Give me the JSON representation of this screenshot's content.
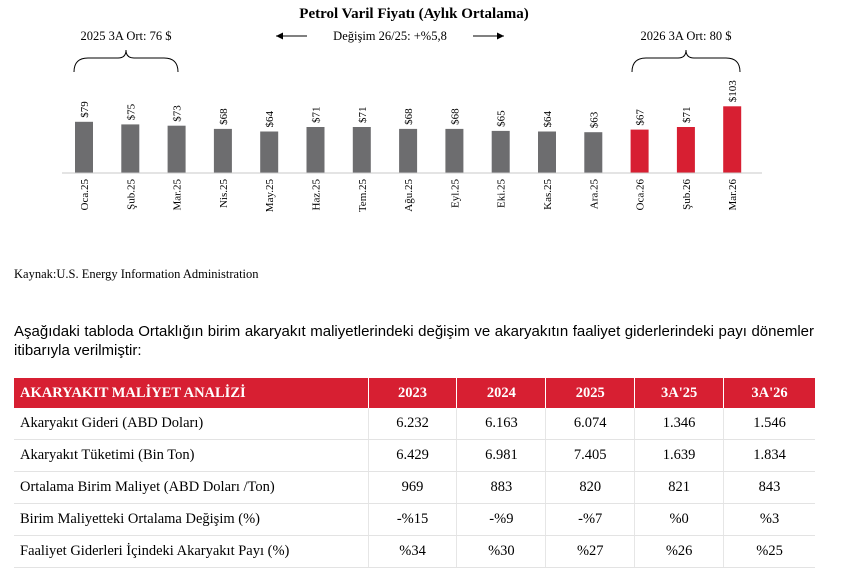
{
  "chart_data": {
    "type": "bar",
    "title": "Petrol Varil Fiyatı (Aylık Ortalama)",
    "categories": [
      "Oca.25",
      "Şub.25",
      "Mar.25",
      "Nis.25",
      "May.25",
      "Haz.25",
      "Tem.25",
      "Ağu.25",
      "Eyl.25",
      "Eki.25",
      "Kas.25",
      "Ara.25",
      "Oca.26",
      "Şub.26",
      "Mar.26"
    ],
    "values": [
      79,
      75,
      73,
      68,
      64,
      71,
      71,
      68,
      68,
      65,
      64,
      63,
      67,
      71,
      103
    ],
    "value_labels": [
      "$79",
      "$75",
      "$73",
      "$68",
      "$64",
      "$71",
      "$71",
      "$68",
      "$68",
      "$65",
      "$64",
      "$63",
      "$67",
      "$71",
      "$103"
    ],
    "highlight_from_index": 12,
    "colors": {
      "base": "#6d6d6f",
      "highlight": "#d71f32"
    },
    "annotations": {
      "left_bracket": "2025 3A Ort: 76 $",
      "right_bracket": "2026 3A Ort: 80 $",
      "change": "Değişim 26/25: +%5,8"
    }
  },
  "source": "Kaynak:U.S. Energy Information Administration",
  "paragraph": "Aşağıdaki tabloda Ortaklığın birim akaryakıt maliyetlerindeki değişim ve akaryakıtın faaliyet giderlerindeki payı dönemler itibarıyla verilmiştir:",
  "table": {
    "headers": [
      "AKARYAKIT MALİYET ANALİZİ",
      "2023",
      "2024",
      "2025",
      "3A'25",
      "3A'26"
    ],
    "rows": [
      [
        "Akaryakıt Gideri (ABD Doları)",
        "6.232",
        "6.163",
        "6.074",
        "1.346",
        "1.546"
      ],
      [
        "Akaryakıt Tüketimi (Bin Ton)",
        "6.429",
        "6.981",
        "7.405",
        "1.639",
        "1.834"
      ],
      [
        "Ortalama Birim Maliyet (ABD Doları /Ton)",
        "969",
        "883",
        "820",
        "821",
        "843"
      ],
      [
        "Birim Maliyetteki Ortalama Değişim (%)",
        "-%15",
        "-%9",
        "-%7",
        "%0",
        "%3"
      ],
      [
        "Faaliyet Giderleri İçindeki Akaryakıt Payı (%)",
        "%34",
        "%30",
        "%27",
        "%26",
        "%25"
      ]
    ]
  }
}
